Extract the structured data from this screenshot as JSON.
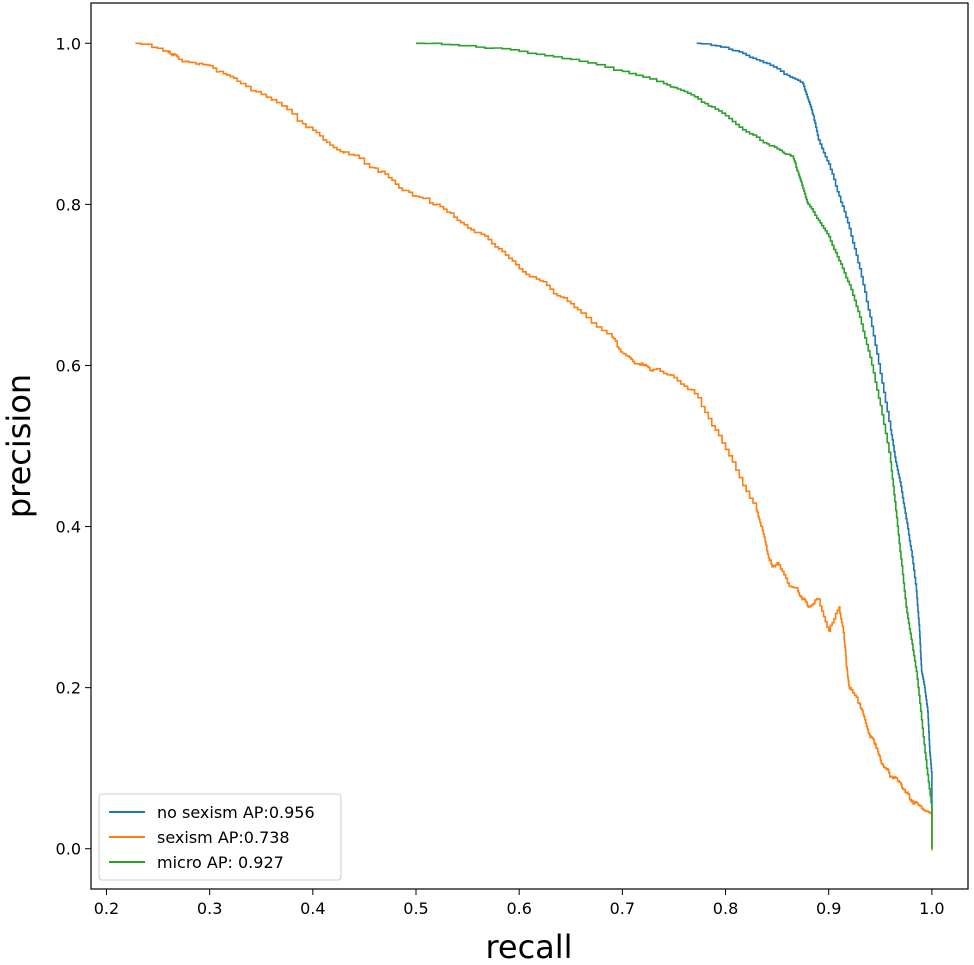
{
  "chart_data": {
    "type": "line",
    "title": "",
    "xlabel": "recall",
    "ylabel": "precision",
    "xlim": [
      0.185,
      1.035
    ],
    "ylim": [
      -0.05,
      1.05
    ],
    "xticks": [
      0.2,
      0.3,
      0.4,
      0.5,
      0.6,
      0.7,
      0.8,
      0.9,
      1.0
    ],
    "xtick_labels": [
      "0.2",
      "0.3",
      "0.4",
      "0.5",
      "0.6",
      "0.7",
      "0.8",
      "0.9",
      "1.0"
    ],
    "yticks": [
      0.0,
      0.2,
      0.4,
      0.6,
      0.8,
      1.0
    ],
    "ytick_labels": [
      "0.0",
      "0.2",
      "0.4",
      "0.6",
      "0.8",
      "1.0"
    ],
    "grid": false,
    "legend_position": "lower-left",
    "series": [
      {
        "name": "no sexism AP:0.956",
        "color": "#1f77b4",
        "x": [
          0.772,
          0.8,
          0.82,
          0.84,
          0.86,
          0.875,
          0.88,
          0.885,
          0.89,
          0.9,
          0.91,
          0.92,
          0.93,
          0.94,
          0.95,
          0.96,
          0.965,
          0.97,
          0.975,
          0.98,
          0.985,
          0.988,
          0.99,
          0.993,
          0.996,
          0.998,
          1.0,
          1.0
        ],
        "y": [
          1.0,
          0.995,
          0.985,
          0.975,
          0.96,
          0.95,
          0.93,
          0.91,
          0.88,
          0.85,
          0.81,
          0.77,
          0.72,
          0.66,
          0.59,
          0.52,
          0.48,
          0.45,
          0.41,
          0.37,
          0.32,
          0.27,
          0.22,
          0.2,
          0.17,
          0.12,
          0.09,
          0.0
        ]
      },
      {
        "name": "sexism AP:0.738",
        "color": "#ff7f0e",
        "x": [
          0.228,
          0.26,
          0.27,
          0.29,
          0.31,
          0.33,
          0.36,
          0.39,
          0.41,
          0.43,
          0.46,
          0.48,
          0.5,
          0.52,
          0.54,
          0.56,
          0.58,
          0.6,
          0.62,
          0.64,
          0.66,
          0.69,
          0.7,
          0.71,
          0.72,
          0.73,
          0.75,
          0.77,
          0.79,
          0.81,
          0.83,
          0.835,
          0.84,
          0.845,
          0.85,
          0.86,
          0.87,
          0.875,
          0.88,
          0.89,
          0.9,
          0.91,
          0.915,
          0.916,
          0.917,
          0.918,
          0.92,
          0.93,
          0.935,
          0.94,
          0.945,
          0.95,
          0.955,
          0.96,
          0.97,
          0.975,
          0.98,
          0.99,
          1.0,
          1.0
        ],
        "y": [
          1.0,
          0.99,
          0.98,
          0.975,
          0.965,
          0.95,
          0.93,
          0.9,
          0.88,
          0.865,
          0.845,
          0.825,
          0.81,
          0.8,
          0.78,
          0.765,
          0.745,
          0.72,
          0.705,
          0.685,
          0.665,
          0.635,
          0.615,
          0.605,
          0.6,
          0.595,
          0.585,
          0.565,
          0.52,
          0.47,
          0.42,
          0.4,
          0.37,
          0.35,
          0.355,
          0.33,
          0.32,
          0.31,
          0.3,
          0.31,
          0.27,
          0.3,
          0.26,
          0.25,
          0.23,
          0.22,
          0.2,
          0.18,
          0.16,
          0.14,
          0.13,
          0.11,
          0.1,
          0.09,
          0.08,
          0.07,
          0.06,
          0.05,
          0.044,
          0.0
        ]
      },
      {
        "name": "micro AP: 0.927",
        "color": "#2ca02c",
        "x": [
          0.5,
          0.55,
          0.6,
          0.65,
          0.7,
          0.74,
          0.76,
          0.78,
          0.8,
          0.82,
          0.84,
          0.855,
          0.865,
          0.87,
          0.875,
          0.88,
          0.89,
          0.9,
          0.91,
          0.92,
          0.93,
          0.94,
          0.95,
          0.96,
          0.965,
          0.97,
          0.975,
          0.98,
          0.985,
          0.99,
          0.995,
          1.0,
          1.0
        ],
        "y": [
          1.0,
          0.997,
          0.99,
          0.98,
          0.965,
          0.95,
          0.94,
          0.925,
          0.91,
          0.89,
          0.875,
          0.865,
          0.86,
          0.84,
          0.82,
          0.8,
          0.78,
          0.76,
          0.73,
          0.7,
          0.66,
          0.61,
          0.55,
          0.48,
          0.42,
          0.36,
          0.3,
          0.26,
          0.22,
          0.16,
          0.1,
          0.05,
          0.0
        ]
      }
    ]
  }
}
